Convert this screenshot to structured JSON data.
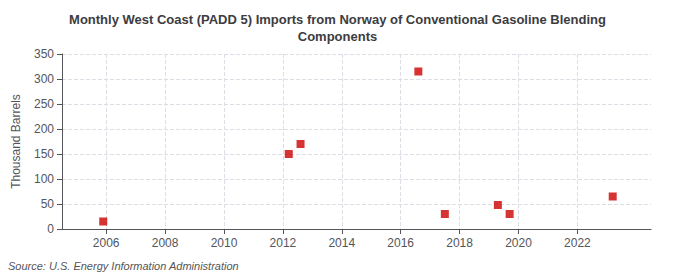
{
  "chart_data": {
    "type": "scatter",
    "title": "Monthly West Coast (PADD 5) Imports from Norway of Conventional Gasoline Blending\nComponents",
    "ylabel": "Thousand Barrels",
    "annotation": "Source: U.S. Energy Information Administration",
    "x": [
      2005.9,
      2012.2,
      2012.6,
      2016.6,
      2017.5,
      2019.3,
      2019.7,
      2023.2
    ],
    "values": [
      15,
      150,
      170,
      315,
      30,
      48,
      30,
      65
    ],
    "color": "#cc0000",
    "marker": "square",
    "xlim": [
      2004.5,
      2024.5
    ],
    "xticks": [
      2006,
      2008,
      2010,
      2012,
      2014,
      2016,
      2018,
      2020,
      2022
    ],
    "ylim": [
      0,
      350
    ],
    "yticks": [
      0,
      50,
      100,
      150,
      200,
      250,
      300,
      350
    ],
    "grid": true
  }
}
